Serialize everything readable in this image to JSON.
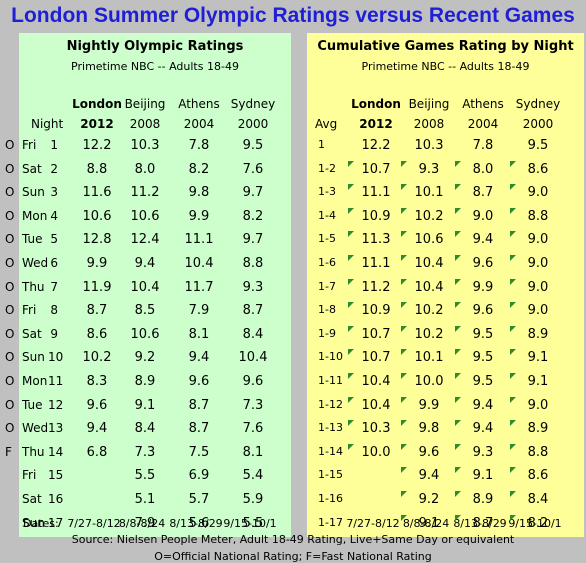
{
  "title": "London Summer Olympic Ratings versus Recent Games",
  "left": {
    "title": "Nightly Olympic Ratings",
    "subtitle": "Primetime NBC -- Adults 18-49",
    "row_header": "Night",
    "dates_label": "Dates:"
  },
  "right": {
    "title": "Cumulative Games Rating by Night",
    "subtitle": "Primetime NBC -- Adults 18-49",
    "row_header": "Avg"
  },
  "games": [
    {
      "city": "London",
      "year": "2012",
      "dates": "7/27-8/12",
      "bold": true
    },
    {
      "city": "Beijing",
      "year": "2008",
      "dates": "8/8-8/24",
      "bold": false
    },
    {
      "city": "Athens",
      "year": "2004",
      "dates": "8/13-8/29",
      "bold": false
    },
    {
      "city": "Sydney",
      "year": "2000",
      "dates": "9/15-10/1",
      "bold": false
    }
  ],
  "footnote1": "Source: Nielsen People Meter, Adult 18-49 Rating, Live+Same Day or equivalent",
  "footnote2": "O=Official National Rating; F=Fast National Rating",
  "chart_data": [
    {
      "type": "table",
      "title": "Nightly Olympic Ratings",
      "columns": [
        "London 2012",
        "Beijing 2008",
        "Athens 2004",
        "Sydney 2000"
      ],
      "rows": [
        {
          "flag": "O",
          "day": "Fri",
          "night": "1",
          "values": [
            "12.2",
            "10.3",
            "7.8",
            "9.5"
          ]
        },
        {
          "flag": "O",
          "day": "Sat",
          "night": "2",
          "values": [
            "8.8",
            "8.0",
            "8.2",
            "7.6"
          ]
        },
        {
          "flag": "O",
          "day": "Sun",
          "night": "3",
          "values": [
            "11.6",
            "11.2",
            "9.8",
            "9.7"
          ]
        },
        {
          "flag": "O",
          "day": "Mon",
          "night": "4",
          "values": [
            "10.6",
            "10.6",
            "9.9",
            "8.2"
          ]
        },
        {
          "flag": "O",
          "day": "Tue",
          "night": "5",
          "values": [
            "12.8",
            "12.4",
            "11.1",
            "9.7"
          ]
        },
        {
          "flag": "O",
          "day": "Wed",
          "night": "6",
          "values": [
            "9.9",
            "9.4",
            "10.4",
            "8.8"
          ]
        },
        {
          "flag": "O",
          "day": "Thu",
          "night": "7",
          "values": [
            "11.9",
            "10.4",
            "11.7",
            "9.3"
          ]
        },
        {
          "flag": "O",
          "day": "Fri",
          "night": "8",
          "values": [
            "8.7",
            "8.5",
            "7.9",
            "8.7"
          ]
        },
        {
          "flag": "O",
          "day": "Sat",
          "night": "9",
          "values": [
            "8.6",
            "10.6",
            "8.1",
            "8.4"
          ]
        },
        {
          "flag": "O",
          "day": "Sun",
          "night": "10",
          "values": [
            "10.2",
            "9.2",
            "9.4",
            "10.4"
          ]
        },
        {
          "flag": "O",
          "day": "Mon",
          "night": "11",
          "values": [
            "8.3",
            "8.9",
            "9.6",
            "9.6"
          ]
        },
        {
          "flag": "O",
          "day": "Tue",
          "night": "12",
          "values": [
            "9.6",
            "9.1",
            "8.7",
            "7.3"
          ]
        },
        {
          "flag": "O",
          "day": "Wed",
          "night": "13",
          "values": [
            "9.4",
            "8.4",
            "8.7",
            "7.6"
          ]
        },
        {
          "flag": "F",
          "day": "Thu",
          "night": "14",
          "values": [
            "6.8",
            "7.3",
            "7.5",
            "8.1"
          ]
        },
        {
          "flag": "",
          "day": "Fri",
          "night": "15",
          "values": [
            "",
            "5.5",
            "6.9",
            "5.4"
          ]
        },
        {
          "flag": "",
          "day": "Sat",
          "night": "16",
          "values": [
            "",
            "5.1",
            "5.7",
            "5.9"
          ]
        },
        {
          "flag": "",
          "day": "Sun",
          "night": "17",
          "values": [
            "",
            "7.9",
            "5.6",
            "5.5"
          ]
        }
      ]
    },
    {
      "type": "table",
      "title": "Cumulative Games Rating by Night",
      "columns": [
        "London 2012",
        "Beijing 2008",
        "Athens 2004",
        "Sydney 2000"
      ],
      "rows": [
        {
          "avg": "1",
          "values": [
            "12.2",
            "10.3",
            "7.8",
            "9.5"
          ],
          "ticks": [
            false,
            false,
            false,
            false
          ]
        },
        {
          "avg": "1-2",
          "values": [
            "10.7",
            "9.3",
            "8.0",
            "8.6"
          ],
          "ticks": [
            true,
            true,
            true,
            true
          ]
        },
        {
          "avg": "1-3",
          "values": [
            "11.1",
            "10.1",
            "8.7",
            "9.0"
          ],
          "ticks": [
            true,
            true,
            true,
            true
          ]
        },
        {
          "avg": "1-4",
          "values": [
            "10.9",
            "10.2",
            "9.0",
            "8.8"
          ],
          "ticks": [
            true,
            true,
            true,
            true
          ]
        },
        {
          "avg": "1-5",
          "values": [
            "11.3",
            "10.6",
            "9.4",
            "9.0"
          ],
          "ticks": [
            true,
            true,
            true,
            true
          ]
        },
        {
          "avg": "1-6",
          "values": [
            "11.1",
            "10.4",
            "9.6",
            "9.0"
          ],
          "ticks": [
            true,
            true,
            true,
            true
          ]
        },
        {
          "avg": "1-7",
          "values": [
            "11.2",
            "10.4",
            "9.9",
            "9.0"
          ],
          "ticks": [
            true,
            true,
            true,
            true
          ]
        },
        {
          "avg": "1-8",
          "values": [
            "10.9",
            "10.2",
            "9.6",
            "9.0"
          ],
          "ticks": [
            true,
            true,
            true,
            true
          ]
        },
        {
          "avg": "1-9",
          "values": [
            "10.7",
            "10.2",
            "9.5",
            "8.9"
          ],
          "ticks": [
            true,
            true,
            true,
            true
          ]
        },
        {
          "avg": "1-10",
          "values": [
            "10.7",
            "10.1",
            "9.5",
            "9.1"
          ],
          "ticks": [
            true,
            true,
            true,
            true
          ]
        },
        {
          "avg": "1-11",
          "values": [
            "10.4",
            "10.0",
            "9.5",
            "9.1"
          ],
          "ticks": [
            true,
            true,
            true,
            true
          ]
        },
        {
          "avg": "1-12",
          "values": [
            "10.4",
            "9.9",
            "9.4",
            "9.0"
          ],
          "ticks": [
            true,
            true,
            true,
            true
          ]
        },
        {
          "avg": "1-13",
          "values": [
            "10.3",
            "9.8",
            "9.4",
            "8.9"
          ],
          "ticks": [
            true,
            true,
            true,
            true
          ]
        },
        {
          "avg": "1-14",
          "values": [
            "10.0",
            "9.6",
            "9.3",
            "8.8"
          ],
          "ticks": [
            true,
            true,
            true,
            true
          ]
        },
        {
          "avg": "1-15",
          "values": [
            "",
            "9.4",
            "9.1",
            "8.6"
          ],
          "ticks": [
            false,
            true,
            true,
            true
          ]
        },
        {
          "avg": "1-16",
          "values": [
            "",
            "9.2",
            "8.9",
            "8.4"
          ],
          "ticks": [
            false,
            true,
            true,
            true
          ]
        },
        {
          "avg": "1-17",
          "values": [
            "",
            "9.1",
            "8.7",
            "8.2"
          ],
          "ticks": [
            false,
            true,
            true,
            true
          ]
        }
      ]
    }
  ]
}
